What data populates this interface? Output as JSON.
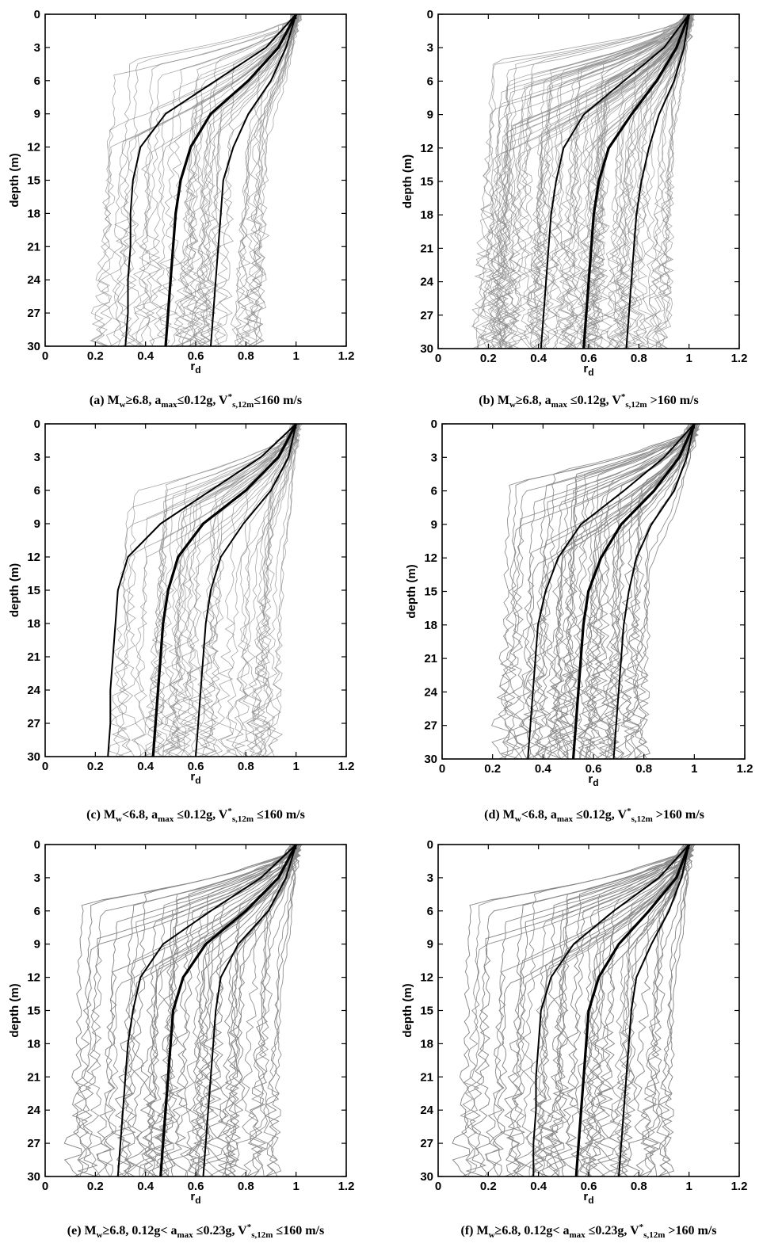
{
  "figure": {
    "panels": [
      {
        "id": "a",
        "caption": {
          "main": "(a) M",
          "w": "w",
          "rest1": "≥6.8, a",
          "max": "max",
          "rest2": "≤0.12g, V",
          "star": "*",
          "s12": "s,12m",
          "rest3": "≤160 m/s"
        }
      },
      {
        "id": "b",
        "caption": {
          "main": "(b) M",
          "w": "w",
          "rest1": "≥6.8, a",
          "max": "max",
          "rest2": " ≤0.12g, V",
          "star": "*",
          "s12": "s,12m",
          "rest3": " >160 m/s"
        }
      },
      {
        "id": "c",
        "caption": {
          "main": "(c) M",
          "w": "w",
          "rest1": "<6.8, a",
          "max": "max",
          "rest2": " ≤0.12g, V",
          "star": "*",
          "s12": "s,12m",
          "rest3": " ≤160 m/s"
        }
      },
      {
        "id": "d",
        "caption": {
          "main": "(d) M",
          "w": "w",
          "rest1": "<6.8, a",
          "max": "max",
          "rest2": " ≤0.12g, V",
          "star": "*",
          "s12": "s,12m",
          "rest3": " >160 m/s"
        }
      },
      {
        "id": "e",
        "caption": {
          "main": "(e) M",
          "w": "w",
          "rest1": "≥6.8, 0.12g< a",
          "max": "max",
          "rest2": " ≤0.23g, V",
          "star": "*",
          "s12": "s,12m",
          "rest3": " ≤160 m/s"
        }
      },
      {
        "id": "f",
        "caption": {
          "main": "(f) M",
          "w": "w",
          "rest1": "≥6.8, 0.12g< a",
          "max": "max",
          "rest2": " ≤0.23g, V",
          "star": "*",
          "s12": "s,12m",
          "rest3": " >160 m/s"
        }
      }
    ],
    "xlabel_main": "r",
    "xlabel_sub": "d",
    "ylabel": "depth (m)"
  },
  "chart_data": [
    {
      "type": "line",
      "panel": "a",
      "xlabel": "rd",
      "ylabel": "depth (m)",
      "xlim": [
        0,
        1.2
      ],
      "ylim": [
        30,
        0
      ],
      "xticks": [
        "0",
        "0.2",
        "0.4",
        "0.6",
        "0.8",
        "1",
        "1.2"
      ],
      "yticks": [
        "0",
        "3",
        "6",
        "9",
        "12",
        "15",
        "18",
        "21",
        "24",
        "27",
        "30"
      ],
      "y": [
        0,
        3,
        6,
        9,
        12,
        15,
        18,
        21,
        24,
        27,
        30
      ],
      "series": [
        {
          "values": [
            1.0,
            0.88,
            0.68,
            0.48,
            0.38,
            0.35,
            0.34,
            0.34,
            0.33,
            0.33,
            0.32
          ]
        },
        {
          "values": [
            1.0,
            0.93,
            0.81,
            0.66,
            0.58,
            0.54,
            0.52,
            0.51,
            0.5,
            0.49,
            0.48
          ]
        },
        {
          "values": [
            1.0,
            0.96,
            0.9,
            0.81,
            0.75,
            0.71,
            0.7,
            0.69,
            0.68,
            0.67,
            0.66
          ]
        }
      ],
      "sample_count": 45,
      "sample_spread": 0.23,
      "grey_envelope": [
        0.2,
        0.9
      ]
    },
    {
      "type": "line",
      "panel": "b",
      "xlabel": "rd",
      "ylabel": "depth (m)",
      "xlim": [
        0,
        1.2
      ],
      "ylim": [
        30,
        0
      ],
      "xticks": [
        "0",
        "0.2",
        "0.4",
        "0.6",
        "0.8",
        "1",
        "1.2"
      ],
      "yticks": [
        "0",
        "3",
        "6",
        "9",
        "12",
        "15",
        "18",
        "21",
        "24",
        "27",
        "30"
      ],
      "y": [
        0,
        3,
        6,
        9,
        12,
        15,
        18,
        21,
        24,
        27,
        30
      ],
      "series": [
        {
          "values": [
            1.0,
            0.9,
            0.74,
            0.58,
            0.5,
            0.47,
            0.45,
            0.44,
            0.43,
            0.42,
            0.41
          ]
        },
        {
          "values": [
            1.0,
            0.95,
            0.87,
            0.77,
            0.68,
            0.64,
            0.62,
            0.61,
            0.6,
            0.59,
            0.58
          ]
        },
        {
          "values": [
            1.0,
            0.98,
            0.94,
            0.88,
            0.84,
            0.81,
            0.79,
            0.78,
            0.77,
            0.76,
            0.75
          ]
        }
      ],
      "sample_count": 90,
      "sample_spread": 0.26,
      "grey_envelope": [
        0.18,
        0.95
      ]
    },
    {
      "type": "line",
      "panel": "c",
      "xlabel": "rd",
      "ylabel": "depth (m)",
      "xlim": [
        0,
        1.2
      ],
      "ylim": [
        30,
        0
      ],
      "xticks": [
        "0",
        "0.2",
        "0.4",
        "0.6",
        "0.8",
        "1",
        "1.2"
      ],
      "yticks": [
        "0",
        "3",
        "6",
        "9",
        "12",
        "15",
        "18",
        "21",
        "24",
        "27",
        "30"
      ],
      "y": [
        0,
        3,
        6,
        9,
        12,
        15,
        18,
        21,
        24,
        27,
        30
      ],
      "series": [
        {
          "values": [
            1.0,
            0.86,
            0.66,
            0.46,
            0.33,
            0.29,
            0.28,
            0.27,
            0.26,
            0.26,
            0.25
          ]
        },
        {
          "values": [
            1.0,
            0.93,
            0.8,
            0.63,
            0.53,
            0.49,
            0.47,
            0.46,
            0.45,
            0.44,
            0.43
          ]
        },
        {
          "values": [
            1.0,
            0.97,
            0.9,
            0.79,
            0.7,
            0.66,
            0.64,
            0.63,
            0.62,
            0.61,
            0.6
          ]
        }
      ],
      "sample_count": 45,
      "sample_spread": 0.22,
      "grey_envelope": [
        0.3,
        0.95
      ]
    },
    {
      "type": "line",
      "panel": "d",
      "xlabel": "rd",
      "ylabel": "depth (m)",
      "xlim": [
        0,
        1.2
      ],
      "ylim": [
        30,
        0
      ],
      "xticks": [
        "0",
        "0.2",
        "0.4",
        "0.6",
        "0.8",
        "1",
        "1.2"
      ],
      "yticks": [
        "0",
        "3",
        "6",
        "9",
        "12",
        "15",
        "18",
        "21",
        "24",
        "27",
        "30"
      ],
      "y": [
        0,
        3,
        6,
        9,
        12,
        15,
        18,
        21,
        24,
        27,
        30
      ],
      "series": [
        {
          "values": [
            1.0,
            0.88,
            0.72,
            0.55,
            0.46,
            0.41,
            0.38,
            0.37,
            0.36,
            0.35,
            0.34
          ]
        },
        {
          "values": [
            1.0,
            0.94,
            0.84,
            0.71,
            0.63,
            0.58,
            0.56,
            0.55,
            0.54,
            0.53,
            0.52
          ]
        },
        {
          "values": [
            1.0,
            0.97,
            0.92,
            0.83,
            0.77,
            0.74,
            0.72,
            0.71,
            0.7,
            0.69,
            0.68
          ]
        }
      ],
      "sample_count": 100,
      "sample_spread": 0.22,
      "grey_envelope": [
        0.27,
        0.83
      ]
    },
    {
      "type": "line",
      "panel": "e",
      "xlabel": "rd",
      "ylabel": "depth (m)",
      "xlim": [
        0,
        1.2
      ],
      "ylim": [
        30,
        0
      ],
      "xticks": [
        "0",
        "0.2",
        "0.4",
        "0.6",
        "0.8",
        "1",
        "1.2"
      ],
      "yticks": [
        "0",
        "3",
        "6",
        "9",
        "12",
        "15",
        "18",
        "21",
        "24",
        "27",
        "30"
      ],
      "y": [
        0,
        3,
        6,
        9,
        12,
        15,
        18,
        21,
        24,
        27,
        30
      ],
      "series": [
        {
          "values": [
            1.0,
            0.86,
            0.66,
            0.47,
            0.38,
            0.35,
            0.33,
            0.32,
            0.31,
            0.3,
            0.29
          ]
        },
        {
          "values": [
            1.0,
            0.93,
            0.8,
            0.64,
            0.55,
            0.51,
            0.5,
            0.49,
            0.48,
            0.47,
            0.46
          ]
        },
        {
          "values": [
            1.0,
            0.96,
            0.89,
            0.77,
            0.7,
            0.68,
            0.67,
            0.66,
            0.65,
            0.64,
            0.63
          ]
        }
      ],
      "sample_count": 130,
      "sample_spread": 0.27,
      "grey_envelope": [
        0.15,
        0.95
      ]
    },
    {
      "type": "line",
      "panel": "f",
      "xlabel": "rd",
      "ylabel": "depth (m)",
      "xlim": [
        0,
        1.2
      ],
      "ylim": [
        30,
        0
      ],
      "xticks": [
        "0",
        "0.2",
        "0.4",
        "0.6",
        "0.8",
        "1",
        "1.2"
      ],
      "yticks": [
        "0",
        "3",
        "6",
        "9",
        "12",
        "15",
        "18",
        "21",
        "24",
        "27",
        "30"
      ],
      "y": [
        0,
        3,
        6,
        9,
        12,
        15,
        18,
        21,
        24,
        27,
        30
      ],
      "series": [
        {
          "values": [
            1.0,
            0.88,
            0.7,
            0.54,
            0.45,
            0.41,
            0.4,
            0.39,
            0.39,
            0.38,
            0.38
          ]
        },
        {
          "values": [
            1.0,
            0.95,
            0.84,
            0.72,
            0.64,
            0.6,
            0.59,
            0.58,
            0.57,
            0.56,
            0.55
          ]
        },
        {
          "values": [
            1.0,
            0.97,
            0.92,
            0.85,
            0.79,
            0.77,
            0.76,
            0.75,
            0.74,
            0.73,
            0.72
          ]
        }
      ],
      "sample_count": 130,
      "sample_spread": 0.27,
      "grey_envelope": [
        0.13,
        0.95
      ]
    }
  ]
}
